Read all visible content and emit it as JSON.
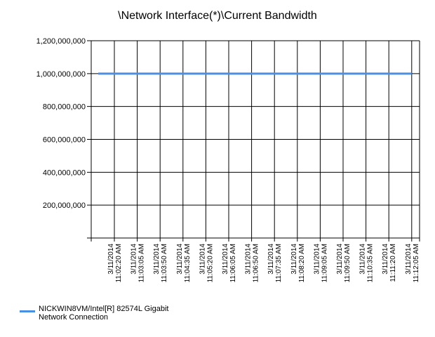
{
  "chart_data": {
    "type": "line",
    "title": "\\Network Interface(*)\\Current Bandwidth",
    "xlabel": "",
    "ylabel": "",
    "ylim": [
      0,
      1200000000
    ],
    "yticks": [
      "1,200,000,000",
      "1,000,000,000",
      "800,000,000",
      "600,000,000",
      "400,000,000",
      "200,000,000"
    ],
    "ytick_values": [
      1200000000,
      1000000000,
      800000000,
      600000000,
      400000000,
      200000000
    ],
    "categories": [
      "3/11/2014 11:02:20 AM",
      "3/11/2014 11:03:05 AM",
      "3/11/2014 11:03:50 AM",
      "3/11/2014 11:04:35 AM",
      "3/11/2014 11:05:20 AM",
      "3/11/2014 11:06:05 AM",
      "3/11/2014 11:06:50 AM",
      "3/11/2014 11:07:35 AM",
      "3/11/2014 11:08:20 AM",
      "3/11/2014 11:09:05 AM",
      "3/11/2014 11:09:50 AM",
      "3/11/2014 11:10:35 AM",
      "3/11/2014 11:11:20 AM",
      "3/11/2014 11:12:05 AM"
    ],
    "series": [
      {
        "name": "NICKWIN8VM/Intel[R] 82574L Gigabit Network Connection",
        "color": "#4a90e2",
        "values": [
          1000000000,
          1000000000,
          1000000000,
          1000000000,
          1000000000,
          1000000000,
          1000000000,
          1000000000,
          1000000000,
          1000000000,
          1000000000,
          1000000000,
          1000000000,
          1000000000
        ]
      }
    ],
    "grid": true,
    "legend_position": "bottom-left"
  }
}
